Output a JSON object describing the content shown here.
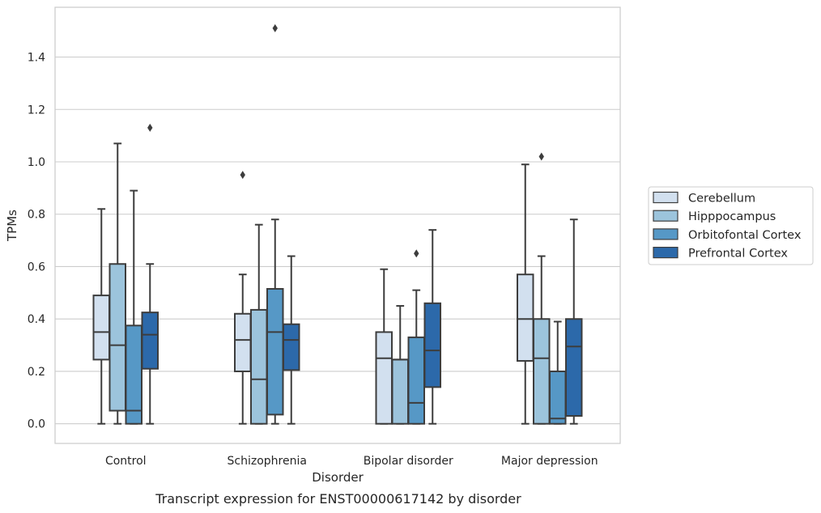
{
  "chart_data": {
    "type": "box",
    "caption": "Transcript expression for ENST00000617142 by disorder",
    "xlabel": "Disorder",
    "ylabel": "TPMs",
    "ylim": [
      -0.075,
      1.59
    ],
    "yticks": [
      "0.0",
      "0.2",
      "0.4",
      "0.6",
      "0.8",
      "1.0",
      "1.2",
      "1.4"
    ],
    "grid": "horizontal",
    "legend_position": "right",
    "categories": [
      "Control",
      "Schizophrenia",
      "Bipolar disorder",
      "Major depression"
    ],
    "series": [
      {
        "name": "Cerebellum",
        "color": "#d2e0ef",
        "boxes": [
          {
            "whislo": 0.0,
            "q1": 0.245,
            "med": 0.35,
            "q3": 0.49,
            "whishi": 0.82,
            "fliers": []
          },
          {
            "whislo": 0.0,
            "q1": 0.2,
            "med": 0.32,
            "q3": 0.42,
            "whishi": 0.57,
            "fliers": [
              0.95
            ]
          },
          {
            "whislo": 0.0,
            "q1": 0.0,
            "med": 0.25,
            "q3": 0.35,
            "whishi": 0.59,
            "fliers": []
          },
          {
            "whislo": 0.0,
            "q1": 0.24,
            "med": 0.4,
            "q3": 0.57,
            "whishi": 0.99,
            "fliers": []
          }
        ]
      },
      {
        "name": "Hipppocampus",
        "color": "#9cc4dc",
        "boxes": [
          {
            "whislo": 0.0,
            "q1": 0.05,
            "med": 0.3,
            "q3": 0.61,
            "whishi": 1.07,
            "fliers": []
          },
          {
            "whislo": 0.0,
            "q1": 0.0,
            "med": 0.17,
            "q3": 0.435,
            "whishi": 0.76,
            "fliers": []
          },
          {
            "whislo": 0.0,
            "q1": 0.0,
            "med": 0.245,
            "q3": 0.245,
            "whishi": 0.45,
            "fliers": []
          },
          {
            "whislo": 0.0,
            "q1": 0.0,
            "med": 0.25,
            "q3": 0.4,
            "whishi": 0.64,
            "fliers": [
              1.02
            ]
          }
        ]
      },
      {
        "name": "Orbitofontal Cortex",
        "color": "#5698c6",
        "boxes": [
          {
            "whislo": 0.0,
            "q1": 0.0,
            "med": 0.05,
            "q3": 0.375,
            "whishi": 0.89,
            "fliers": []
          },
          {
            "whislo": 0.0,
            "q1": 0.035,
            "med": 0.35,
            "q3": 0.515,
            "whishi": 0.78,
            "fliers": [
              1.51
            ]
          },
          {
            "whislo": 0.0,
            "q1": 0.0,
            "med": 0.08,
            "q3": 0.33,
            "whishi": 0.51,
            "fliers": [
              0.65
            ]
          },
          {
            "whislo": 0.0,
            "q1": 0.0,
            "med": 0.02,
            "q3": 0.2,
            "whishi": 0.39,
            "fliers": []
          }
        ]
      },
      {
        "name": "Prefrontal Cortex",
        "color": "#2c69aa",
        "boxes": [
          {
            "whislo": 0.0,
            "q1": 0.21,
            "med": 0.34,
            "q3": 0.425,
            "whishi": 0.61,
            "fliers": [
              1.13
            ]
          },
          {
            "whislo": 0.0,
            "q1": 0.205,
            "med": 0.32,
            "q3": 0.38,
            "whishi": 0.64,
            "fliers": []
          },
          {
            "whislo": 0.0,
            "q1": 0.14,
            "med": 0.28,
            "q3": 0.46,
            "whishi": 0.74,
            "fliers": []
          },
          {
            "whislo": 0.0,
            "q1": 0.03,
            "med": 0.295,
            "q3": 0.4,
            "whishi": 0.78,
            "fliers": []
          }
        ]
      }
    ]
  }
}
